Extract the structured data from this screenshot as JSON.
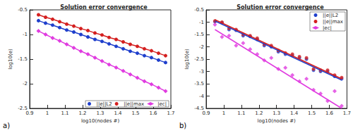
{
  "chart_data": [
    {
      "type": "line",
      "panel_label": "a)",
      "title": "Solution error convergence",
      "x_label": "log10(nodes #)",
      "y_label": "log10(e)",
      "x": [
        0.95,
        0.99,
        1.03,
        1.07,
        1.11,
        1.15,
        1.19,
        1.23,
        1.27,
        1.31,
        1.35,
        1.39,
        1.43,
        1.47,
        1.51,
        1.55,
        1.59,
        1.63,
        1.67
      ],
      "series": [
        {
          "name": "||e||L2",
          "color": "#1f3fcc",
          "marker": "circle",
          "values": [
            -0.72,
            -0.77,
            -0.81,
            -0.86,
            -0.91,
            -0.95,
            -1.0,
            -1.05,
            -1.1,
            -1.14,
            -1.19,
            -1.24,
            -1.29,
            -1.34,
            -1.38,
            -1.43,
            -1.47,
            -1.52,
            -1.57
          ]
        },
        {
          "name": "||e||max",
          "color": "#d42020",
          "marker": "circle",
          "values": [
            -0.6,
            -0.65,
            -0.69,
            -0.74,
            -0.79,
            -0.83,
            -0.88,
            -0.92,
            -0.97,
            -1.01,
            -1.06,
            -1.1,
            -1.15,
            -1.2,
            -1.24,
            -1.29,
            -1.33,
            -1.38,
            -1.43
          ]
        },
        {
          "name": "|ec|",
          "color": "#e03ce0",
          "marker": "diamond",
          "values": [
            -0.93,
            -1.0,
            -1.07,
            -1.13,
            -1.2,
            -1.27,
            -1.34,
            -1.4,
            -1.47,
            -1.54,
            -1.61,
            -1.67,
            -1.74,
            -1.81,
            -1.88,
            -1.95,
            -2.01,
            -2.08,
            -2.15
          ]
        }
      ],
      "xlim": [
        0.9,
        1.7
      ],
      "xticks": [
        0.9,
        1,
        1.1,
        1.2,
        1.3,
        1.4,
        1.5,
        1.6,
        1.7
      ],
      "ylim": [
        -2.5,
        -0.5
      ],
      "yticks": [
        -2.5,
        -2,
        -1.5,
        -1,
        -0.5
      ],
      "grid": false,
      "legend": "lower right"
    },
    {
      "type": "scatter",
      "panel_label": "b)",
      "title": "Solution error convergence",
      "x_label": "log10(nodes #)",
      "y_label": "log10(e)",
      "x": [
        0.95,
        0.99,
        1.03,
        1.07,
        1.11,
        1.15,
        1.19,
        1.23,
        1.27,
        1.31,
        1.35,
        1.39,
        1.43,
        1.47,
        1.51,
        1.55,
        1.59,
        1.63,
        1.67
      ],
      "fit_x": [
        0.95,
        1.67
      ],
      "series": [
        {
          "name": "||e||L2",
          "color": "#1f3fcc",
          "marker": "circle",
          "values": [
            -0.98,
            -1.02,
            -1.3,
            -1.33,
            -1.55,
            -1.58,
            -1.7,
            -1.95,
            -2.0,
            -2.2,
            -2.3,
            -2.35,
            -2.45,
            -2.5,
            -2.95,
            -3.0,
            -3.0,
            -3.2,
            -3.3
          ],
          "fit_values": [
            -0.95,
            -3.35
          ]
        },
        {
          "name": "||e||max",
          "color": "#d42020",
          "marker": "circle",
          "values": [
            -0.95,
            -1.0,
            -1.25,
            -1.3,
            -1.5,
            -1.55,
            -1.65,
            -1.9,
            -1.95,
            -2.15,
            -2.25,
            -2.3,
            -2.4,
            -2.45,
            -2.9,
            -2.95,
            -2.95,
            -3.15,
            -3.25
          ],
          "fit_values": [
            -0.9,
            -3.3
          ]
        },
        {
          "name": "|ec|",
          "color": "#e03ce0",
          "marker": "diamond",
          "values": [
            -1.1,
            -1.6,
            -1.55,
            -1.95,
            -1.85,
            -2.1,
            -2.3,
            -2.55,
            -2.45,
            -2.9,
            -2.85,
            -3.15,
            -3.4,
            -3.3,
            -3.75,
            -3.9,
            -4.2,
            -3.8,
            -4.4
          ],
          "fit_values": [
            -1.3,
            -4.5
          ]
        }
      ],
      "xlim": [
        0.9,
        1.7
      ],
      "xticks": [
        0.9,
        1,
        1.1,
        1.2,
        1.3,
        1.4,
        1.5,
        1.6,
        1.7
      ],
      "ylim": [
        -4.5,
        -0.5
      ],
      "yticks": [
        -4.5,
        -4,
        -3.5,
        -3,
        -2.5,
        -2,
        -1.5,
        -1,
        -0.5
      ],
      "grid": false,
      "legend": "upper right"
    }
  ]
}
